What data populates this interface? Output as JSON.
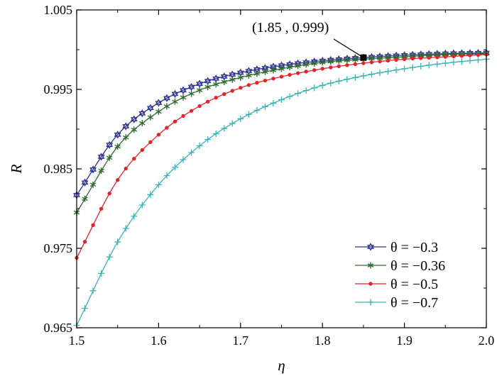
{
  "chart_data": {
    "type": "line",
    "xlabel": "η",
    "ylabel": "R",
    "xlim": [
      1.5,
      2.0
    ],
    "ylim": [
      0.965,
      1.005
    ],
    "xticks": [
      "1.5",
      "1.6",
      "1.7",
      "1.8",
      "1.9",
      "2.0"
    ],
    "yticks": [
      "0.965",
      "0.975",
      "0.985",
      "0.995",
      "1.005"
    ],
    "grid": false,
    "legend_position": "bottom-right",
    "x": [
      1.5,
      1.55,
      1.6,
      1.65,
      1.7,
      1.75,
      1.8,
      1.85,
      1.9,
      1.95,
      2.0
    ],
    "series": [
      {
        "name": "θ = −0.3",
        "color": "#2b2f8f",
        "marker": "star-hex",
        "values": [
          0.9817,
          0.9893,
          0.9933,
          0.9957,
          0.9971,
          0.998,
          0.9986,
          0.999,
          0.9993,
          0.9995,
          0.9996
        ]
      },
      {
        "name": "θ = −0.36",
        "color": "#2e6b2e",
        "marker": "asterisk",
        "values": [
          0.9795,
          0.9878,
          0.9922,
          0.9949,
          0.9965,
          0.9976,
          0.9984,
          0.9988,
          0.9991,
          0.9994,
          0.9995
        ]
      },
      {
        "name": "θ = −0.5",
        "color": "#e0262b",
        "marker": "dot",
        "values": [
          0.9738,
          0.9836,
          0.9893,
          0.9929,
          0.9952,
          0.9966,
          0.9976,
          0.9983,
          0.9988,
          0.9991,
          0.9994
        ]
      },
      {
        "name": "θ = −0.7",
        "color": "#3ab3b8",
        "marker": "plus",
        "values": [
          0.9653,
          0.9758,
          0.983,
          0.9879,
          0.9913,
          0.9937,
          0.9955,
          0.9967,
          0.9976,
          0.9983,
          0.9988
        ]
      }
    ],
    "annotation": {
      "text": "(1.85 , 0.999)",
      "x": 1.85,
      "y": 0.999
    }
  }
}
